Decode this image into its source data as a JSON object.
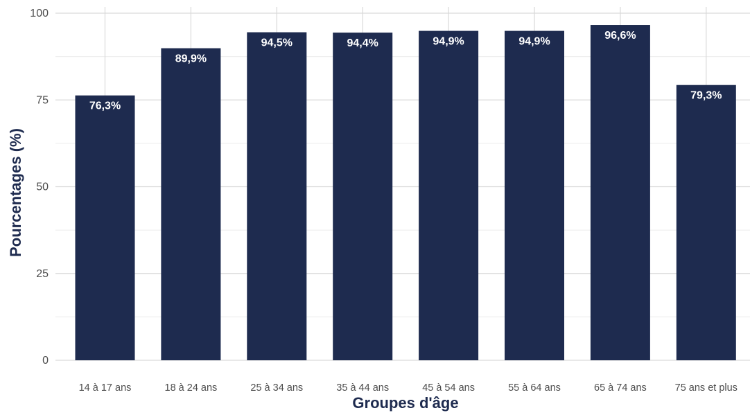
{
  "chart_data": {
    "type": "bar",
    "categories": [
      "14 à 17 ans",
      "18 à 24 ans",
      "25 à 34 ans",
      "35 à 44 ans",
      "45 à 54 ans",
      "55 à 64 ans",
      "65 à 74 ans",
      "75 ans et plus"
    ],
    "values": [
      76.3,
      89.9,
      94.5,
      94.4,
      94.9,
      94.9,
      96.6,
      79.3
    ],
    "value_labels": [
      "76,3%",
      "89,9%",
      "94,5%",
      "94,4%",
      "94,9%",
      "94,9%",
      "96,6%",
      "79,3%"
    ],
    "title": "",
    "xlabel": "Groupes d'âge",
    "ylabel": "Pourcentages (%)",
    "ylim": [
      0,
      100
    ],
    "yticks": [
      0,
      25,
      50,
      75,
      100
    ],
    "ytick_labels": [
      "0",
      "25",
      "50",
      "75",
      "100"
    ],
    "grid": true,
    "legend": false
  },
  "colors": {
    "bar": "#1e2b4f",
    "axis_title": "#1e2b4f",
    "grid_major": "#d9d9d9",
    "grid_minor": "#ececec"
  }
}
